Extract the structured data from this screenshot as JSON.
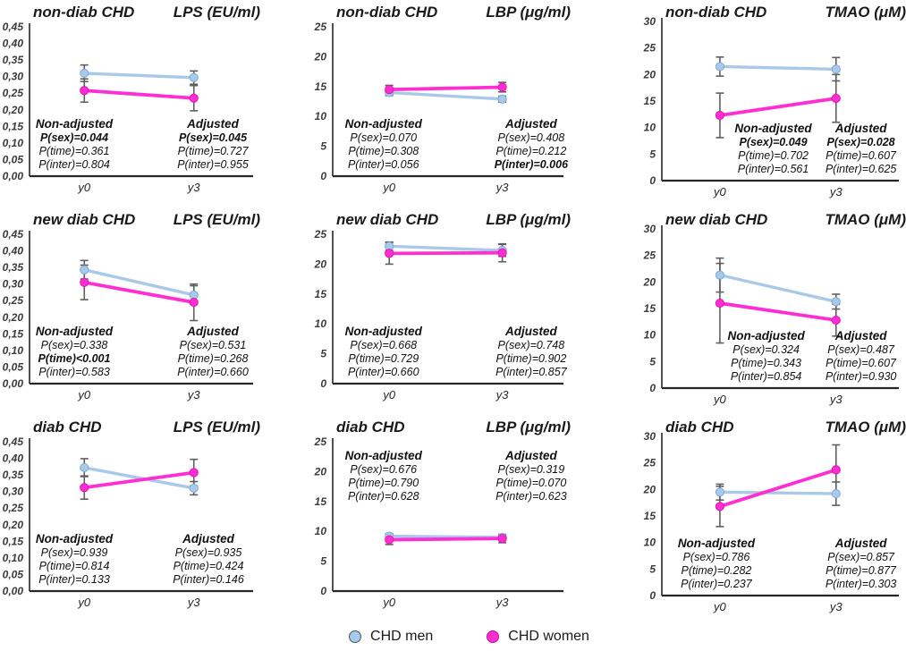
{
  "legend": {
    "items": [
      {
        "label": "CHD men",
        "color": "#A9C9E9",
        "border": "#44546A"
      },
      {
        "label": "CHD women",
        "color": "#FF2ED2",
        "border": "#B5119C"
      }
    ]
  },
  "colors": {
    "men_line": "#A9C9E9",
    "men_marker_stroke": "#7FA8D6",
    "women_line": "#FF2ED2",
    "women_marker_stroke": "#E412B4",
    "error_bar": "#5F5F5F",
    "axis": "#262626"
  },
  "chart_data": [
    {
      "type": "line",
      "group": "non-diab CHD",
      "measure": "LPS (EU/ml)",
      "x": [
        "y0",
        "y3"
      ],
      "ylim": [
        0,
        0.45
      ],
      "yticks": [
        "0,00",
        "0,05",
        "0,10",
        "0,15",
        "0,20",
        "0,25",
        "0,30",
        "0,35",
        "0,40",
        "0,45"
      ],
      "series": [
        {
          "name": "CHD men",
          "values": [
            0.31,
            0.297
          ],
          "err": [
            0.025,
            0.02
          ]
        },
        {
          "name": "CHD women",
          "values": [
            0.258,
            0.235
          ],
          "err": [
            0.035,
            0.038
          ]
        }
      ],
      "annotations": {
        "position": "bottom",
        "na_cx": 0.2,
        "adj_cx": 0.82,
        "non_adjusted": {
          "title": "Non-adjusted",
          "lines": [
            {
              "text": "P(sex)=0.044",
              "bold": true
            },
            {
              "text": "P(time)=0.361",
              "bold": false
            },
            {
              "text": "P(inter)=0.804",
              "bold": false
            }
          ]
        },
        "adjusted": {
          "title": "Adjusted",
          "lines": [
            {
              "text": "P(sex)=0.045",
              "bold": true
            },
            {
              "text": "P(time)=0.727",
              "bold": false
            },
            {
              "text": "P(inter)=0.955",
              "bold": false
            }
          ]
        }
      }
    },
    {
      "type": "line",
      "group": "non-diab CHD",
      "measure": "LBP (μg/ml)",
      "x": [
        "y0",
        "y3"
      ],
      "ylim": [
        0,
        25
      ],
      "yticks": [
        "0",
        "5",
        "10",
        "15",
        "20",
        "25"
      ],
      "series": [
        {
          "name": "CHD men",
          "values": [
            14.0,
            12.9
          ],
          "err": [
            0.5,
            0.5
          ]
        },
        {
          "name": "CHD women",
          "values": [
            14.5,
            14.9
          ],
          "err": [
            0.7,
            0.8
          ]
        }
      ],
      "annotations": {
        "position": "bottom",
        "na_cx": 0.22,
        "adj_cx": 0.86,
        "non_adjusted": {
          "title": "Non-adjusted",
          "lines": [
            {
              "text": "P(sex)=0.070",
              "bold": false
            },
            {
              "text": "P(time)=0.308",
              "bold": false
            },
            {
              "text": "P(inter)=0.056",
              "bold": false
            }
          ]
        },
        "adjusted": {
          "title": "Adjusted",
          "lines": [
            {
              "text": "P(sex)=0.408",
              "bold": false
            },
            {
              "text": "P(time)=0.212",
              "bold": false
            },
            {
              "text": "P(inter)=0.006",
              "bold": true
            }
          ]
        }
      }
    },
    {
      "type": "line",
      "group": "non-diab CHD",
      "measure": "TMAO (μM)",
      "x": [
        "y0",
        "y3"
      ],
      "ylim": [
        0,
        30
      ],
      "yticks": [
        "0",
        "5",
        "10",
        "15",
        "20",
        "25",
        "30"
      ],
      "series": [
        {
          "name": "CHD men",
          "values": [
            21.5,
            21.0
          ],
          "err": [
            1.8,
            2.2
          ]
        },
        {
          "name": "CHD women",
          "values": [
            12.3,
            15.5
          ],
          "err": [
            4.2,
            4.5
          ]
        }
      ],
      "annotations": {
        "position": "bottom",
        "na_cx": 0.47,
        "adj_cx": 0.84,
        "non_adjusted": {
          "title": "Non-adjusted",
          "lines": [
            {
              "text": "P(sex)=0.049",
              "bold": true
            },
            {
              "text": "P(time)=0.702",
              "bold": false
            },
            {
              "text": "P(inter)=0.561",
              "bold": false
            }
          ]
        },
        "adjusted": {
          "title": "Adjusted",
          "lines": [
            {
              "text": "P(sex)=0.028",
              "bold": true
            },
            {
              "text": "P(time)=0.607",
              "bold": false
            },
            {
              "text": "P(inter)=0.625",
              "bold": false
            }
          ]
        }
      }
    },
    {
      "type": "line",
      "group": "new diab CHD",
      "measure": "LPS (EU/ml)",
      "x": [
        "y0",
        "y3"
      ],
      "ylim": [
        0,
        0.45
      ],
      "yticks": [
        "0,00",
        "0,05",
        "0,10",
        "0,15",
        "0,20",
        "0,25",
        "0,30",
        "0,35",
        "0,40",
        "0,45"
      ],
      "series": [
        {
          "name": "CHD men",
          "values": [
            0.343,
            0.267
          ],
          "err": [
            0.028,
            0.028
          ]
        },
        {
          "name": "CHD women",
          "values": [
            0.305,
            0.245
          ],
          "err": [
            0.052,
            0.055
          ]
        }
      ],
      "annotations": {
        "position": "bottom",
        "na_cx": 0.2,
        "adj_cx": 0.82,
        "non_adjusted": {
          "title": "Non-adjusted",
          "lines": [
            {
              "text": "P(sex)=0.338",
              "bold": false
            },
            {
              "text": "P(time)<0.001",
              "bold": true
            },
            {
              "text": "P(inter)=0.583",
              "bold": false
            }
          ]
        },
        "adjusted": {
          "title": "Adjusted",
          "lines": [
            {
              "text": "P(sex)=0.531",
              "bold": false
            },
            {
              "text": "P(time)=0.268",
              "bold": false
            },
            {
              "text": "P(inter)=0.660",
              "bold": false
            }
          ]
        }
      }
    },
    {
      "type": "line",
      "group": "new diab CHD",
      "measure": "LBP (μg/ml)",
      "x": [
        "y0",
        "y3"
      ],
      "ylim": [
        0,
        25
      ],
      "yticks": [
        "0",
        "5",
        "10",
        "15",
        "20",
        "25"
      ],
      "series": [
        {
          "name": "CHD men",
          "values": [
            23.0,
            22.3
          ],
          "err": [
            0.7,
            1.0
          ]
        },
        {
          "name": "CHD women",
          "values": [
            21.8,
            21.9
          ],
          "err": [
            1.8,
            1.5
          ]
        }
      ],
      "annotations": {
        "position": "bottom",
        "na_cx": 0.22,
        "adj_cx": 0.86,
        "non_adjusted": {
          "title": "Non-adjusted",
          "lines": [
            {
              "text": "P(sex)=0.668",
              "bold": false
            },
            {
              "text": "P(time)=0.729",
              "bold": false
            },
            {
              "text": "P(inter)=0.660",
              "bold": false
            }
          ]
        },
        "adjusted": {
          "title": "Adjusted",
          "lines": [
            {
              "text": "P(sex)=0.748",
              "bold": false
            },
            {
              "text": "P(time)=0.902",
              "bold": false
            },
            {
              "text": "P(inter)=0.857",
              "bold": false
            }
          ]
        }
      }
    },
    {
      "type": "line",
      "group": "new diab CHD",
      "measure": "TMAO (μM)",
      "x": [
        "y0",
        "y3"
      ],
      "ylim": [
        0,
        30
      ],
      "yticks": [
        "0",
        "5",
        "10",
        "15",
        "20",
        "25",
        "30"
      ],
      "series": [
        {
          "name": "CHD men",
          "values": [
            21.3,
            16.3
          ],
          "err": [
            3.2,
            1.4
          ]
        },
        {
          "name": "CHD women",
          "values": [
            16.0,
            12.8
          ],
          "err": [
            7.5,
            3.0
          ]
        }
      ],
      "annotations": {
        "position": "bottom",
        "na_cx": 0.44,
        "adj_cx": 0.84,
        "non_adjusted": {
          "title": "Non-adjusted",
          "lines": [
            {
              "text": "P(sex)=0.324",
              "bold": false
            },
            {
              "text": "P(time)=0.343",
              "bold": false
            },
            {
              "text": "P(inter)=0.854",
              "bold": false
            }
          ]
        },
        "adjusted": {
          "title": "Adjusted",
          "lines": [
            {
              "text": "P(sex)=0.487",
              "bold": false
            },
            {
              "text": "P(time)=0.607",
              "bold": false
            },
            {
              "text": "P(inter)=0.930",
              "bold": false
            }
          ]
        }
      }
    },
    {
      "type": "line",
      "group": "diab CHD",
      "measure": "LPS (EU/ml)",
      "x": [
        "y0",
        "y3"
      ],
      "ylim": [
        0,
        0.45
      ],
      "yticks": [
        "0,00",
        "0,05",
        "0,10",
        "0,15",
        "0,20",
        "0,25",
        "0,30",
        "0,35",
        "0,40",
        "0,45"
      ],
      "series": [
        {
          "name": "CHD men",
          "values": [
            0.372,
            0.31
          ],
          "err": [
            0.027,
            0.02
          ]
        },
        {
          "name": "CHD women",
          "values": [
            0.312,
            0.357
          ],
          "err": [
            0.035,
            0.04
          ]
        }
      ],
      "annotations": {
        "position": "bottom",
        "na_cx": 0.2,
        "adj_cx": 0.8,
        "non_adjusted": {
          "title": "Non-adjusted",
          "lines": [
            {
              "text": "P(sex)=0.939",
              "bold": false
            },
            {
              "text": "P(time)=0.814",
              "bold": false
            },
            {
              "text": "P(inter)=0.133",
              "bold": false
            }
          ]
        },
        "adjusted": {
          "title": "Adjusted",
          "lines": [
            {
              "text": "P(sex)=0.935",
              "bold": false
            },
            {
              "text": "P(time)=0.424",
              "bold": false
            },
            {
              "text": "P(inter)=0.146",
              "bold": false
            }
          ]
        }
      }
    },
    {
      "type": "line",
      "group": "diab CHD",
      "measure": "LBP (μg/ml)",
      "x": [
        "y0",
        "y3"
      ],
      "ylim": [
        0,
        25
      ],
      "yticks": [
        "0",
        "5",
        "10",
        "15",
        "20",
        "25"
      ],
      "series": [
        {
          "name": "CHD men",
          "values": [
            9.2,
            9.0
          ],
          "err": [
            0.4,
            0.4
          ]
        },
        {
          "name": "CHD women",
          "values": [
            8.6,
            8.8
          ],
          "err": [
            0.8,
            0.7
          ]
        }
      ],
      "annotations": {
        "position": "top",
        "na_cx": 0.22,
        "adj_cx": 0.86,
        "non_adjusted": {
          "title": "Non-adjusted",
          "lines": [
            {
              "text": "P(sex)=0.676",
              "bold": false
            },
            {
              "text": "P(time)=0.790",
              "bold": false
            },
            {
              "text": "P(inter)=0.628",
              "bold": false
            }
          ]
        },
        "adjusted": {
          "title": "Adjusted",
          "lines": [
            {
              "text": "P(sex)=0.319",
              "bold": false
            },
            {
              "text": "P(time)=0.070",
              "bold": false
            },
            {
              "text": "P(inter)=0.623",
              "bold": false
            }
          ]
        }
      }
    },
    {
      "type": "line",
      "group": "diab CHD",
      "measure": "TMAO (μM)",
      "x": [
        "y0",
        "y3"
      ],
      "ylim": [
        0,
        30
      ],
      "yticks": [
        "0",
        "5",
        "10",
        "15",
        "20",
        "25",
        "30"
      ],
      "series": [
        {
          "name": "CHD men",
          "values": [
            19.5,
            19.2
          ],
          "err": [
            1.5,
            2.2
          ]
        },
        {
          "name": "CHD women",
          "values": [
            16.8,
            23.7
          ],
          "err": [
            3.8,
            4.7
          ]
        }
      ],
      "annotations": {
        "position": "bottom",
        "na_cx": 0.23,
        "adj_cx": 0.84,
        "non_adjusted": {
          "title": "Non-adjusted",
          "lines": [
            {
              "text": "P(sex)=0.786",
              "bold": false
            },
            {
              "text": "P(time)=0.282",
              "bold": false
            },
            {
              "text": "P(inter)=0.237",
              "bold": false
            }
          ]
        },
        "adjusted": {
          "title": "Adjusted",
          "lines": [
            {
              "text": "P(sex)=0.857",
              "bold": false
            },
            {
              "text": "P(time)=0.877",
              "bold": false
            },
            {
              "text": "P(inter)=0.303",
              "bold": false
            }
          ]
        }
      }
    }
  ]
}
